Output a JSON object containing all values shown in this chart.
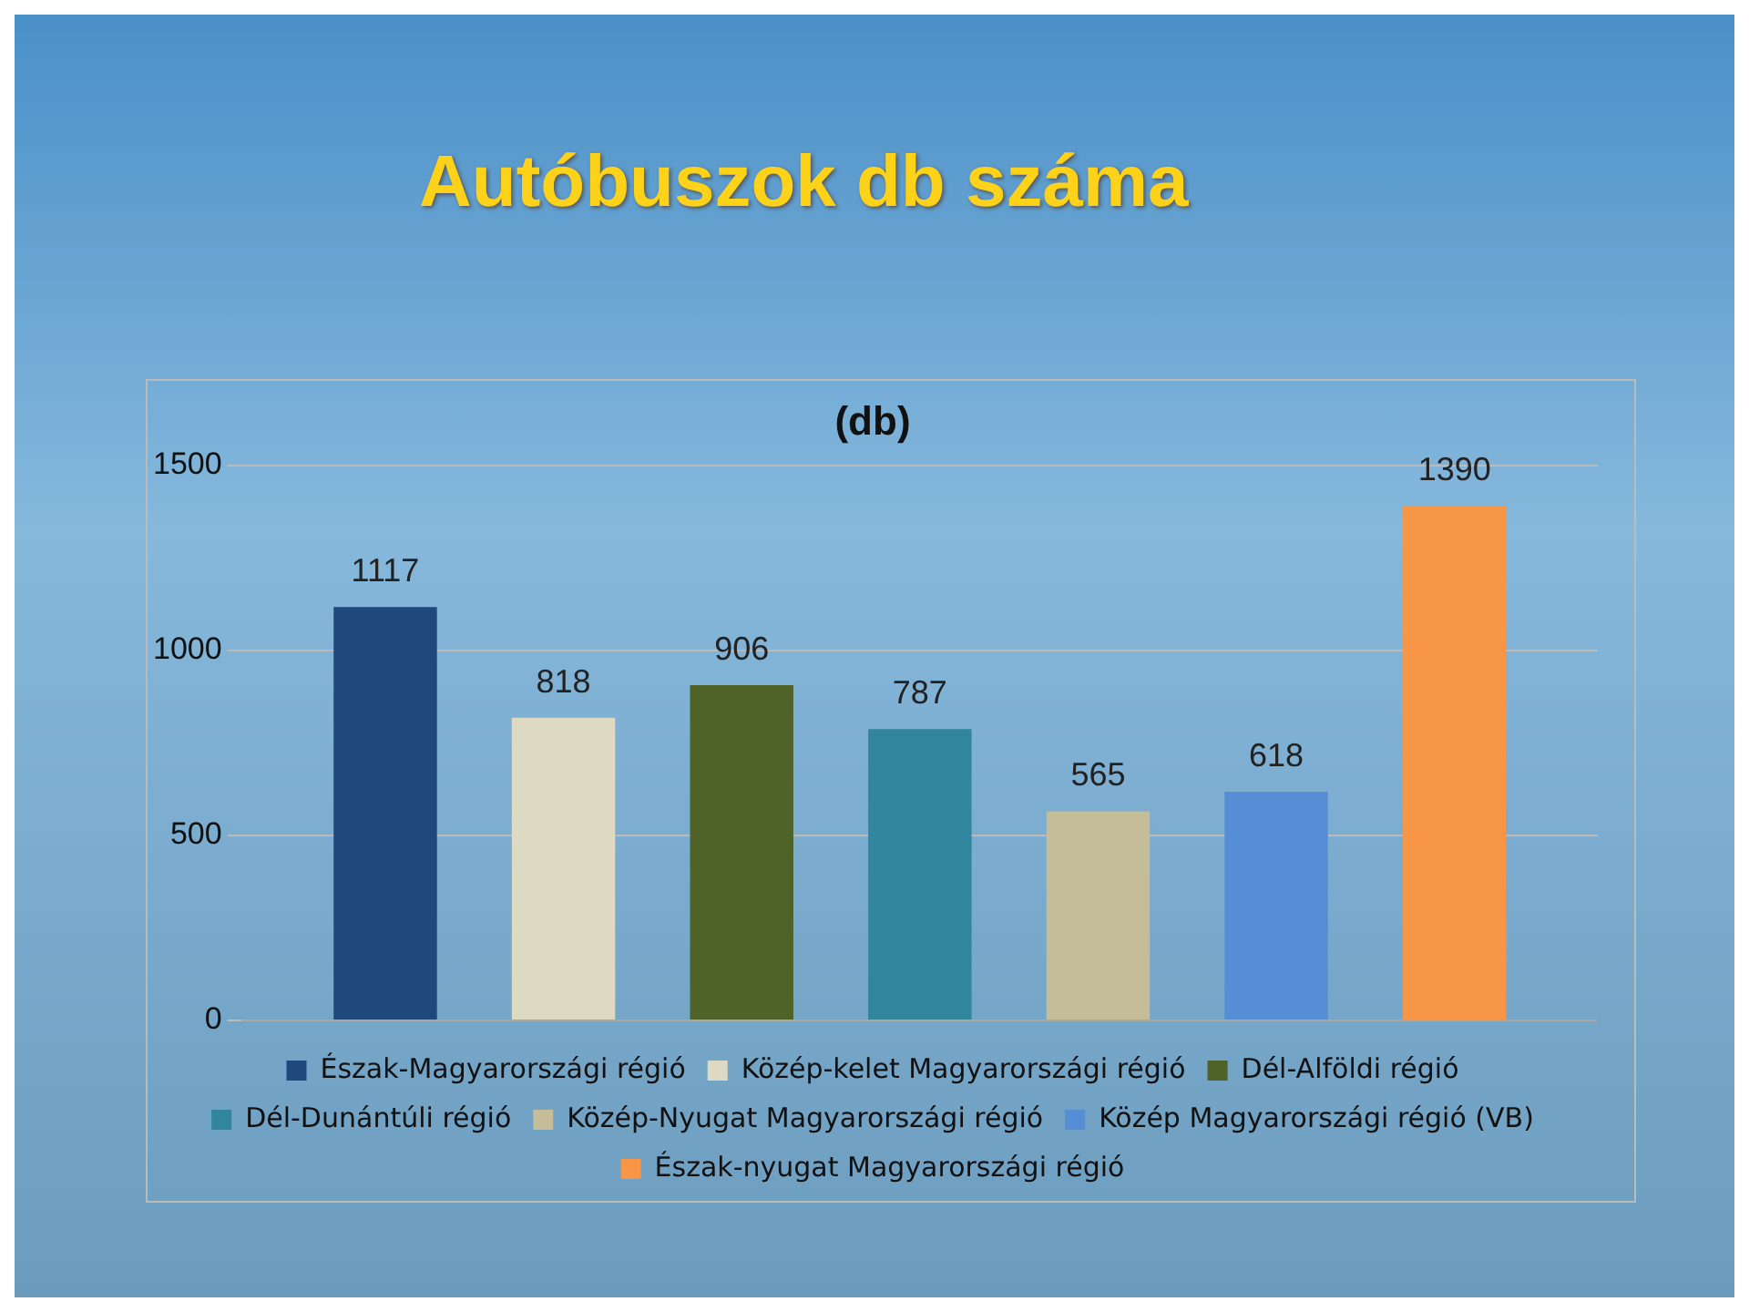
{
  "chart_data": {
    "type": "bar",
    "title": "Autóbuszok db száma",
    "subtitle": "(db)",
    "categories": [
      null
    ],
    "series": [
      {
        "name": "Észak-Magyarországi régió",
        "color": "#1f497d",
        "values": [
          1117
        ]
      },
      {
        "name": "Közép-kelet Magyarországi régió",
        "color": "#ddd9c3",
        "values": [
          818
        ]
      },
      {
        "name": "Dél-Alföldi régió",
        "color": "#4f6228",
        "values": [
          906
        ]
      },
      {
        "name": "Dél-Dunántúli régió",
        "color": "#31859c",
        "values": [
          787
        ]
      },
      {
        "name": "Közép-Nyugat Magyarországi régió",
        "color": "#c4bd97",
        "values": [
          565
        ]
      },
      {
        "name": "Közép Magyarországi régió (VB)",
        "color": "#558ed5",
        "values": [
          618
        ]
      },
      {
        "name": "Észak-nyugat Magyarországi régió",
        "color": "#f79646",
        "values": [
          1390
        ]
      }
    ],
    "ylim": [
      0,
      1500
    ],
    "yticks": [
      0,
      500,
      1000,
      1500
    ],
    "grid": "y",
    "legend": "bottom",
    "data_labels": true
  }
}
